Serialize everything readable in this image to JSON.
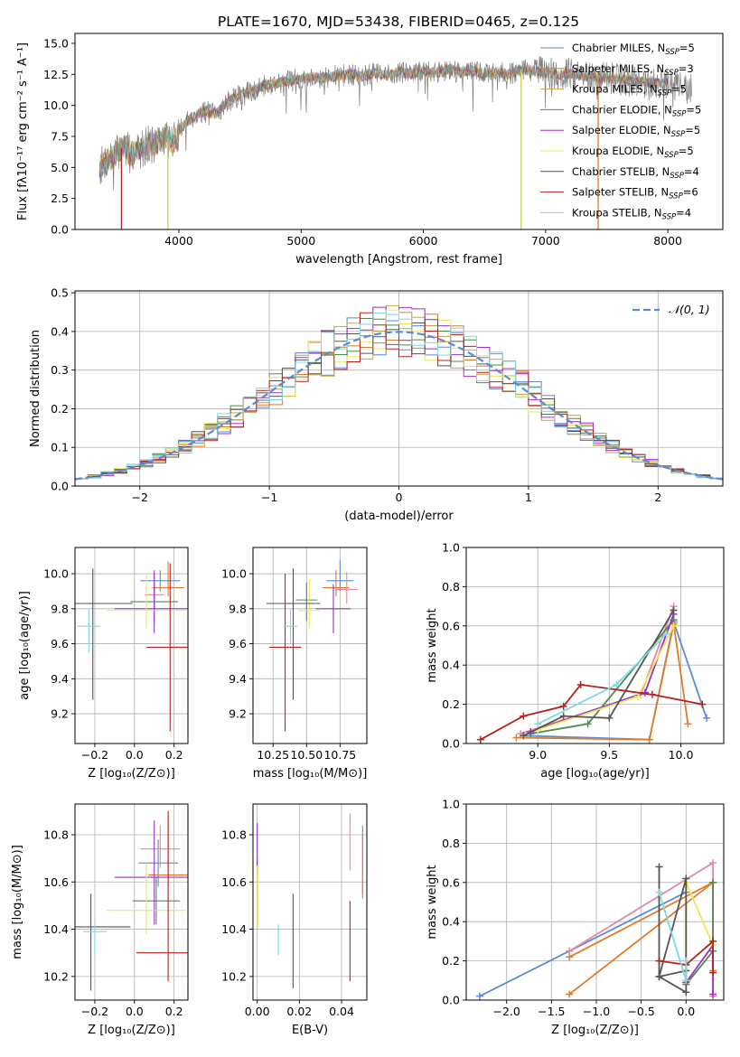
{
  "figure_title": "PLATE=1670, MJD=53438, FIBERID=0465, z=0.125",
  "chart_data": [
    {
      "id": "spectrum",
      "type": "line",
      "xlabel": "wavelength [Angstrom, rest frame]",
      "ylabel": "Flux [fλ10⁻¹⁷ erg cm⁻² s⁻¹ A⁻¹]",
      "xlim": [
        3150,
        8450
      ],
      "ylim": [
        0,
        15.8
      ],
      "xticks": [
        4000,
        5000,
        6000,
        7000,
        8000
      ],
      "xtick_labels": [
        "4000",
        "5000",
        "6000",
        "7000",
        "8000"
      ],
      "yticks": [
        0,
        2.5,
        5,
        7.5,
        10,
        12.5,
        15
      ],
      "ytick_labels": [
        "0.0",
        "2.5",
        "5.0",
        "7.5",
        "10.0",
        "12.5",
        "15.0"
      ],
      "legend_position": "upper-right",
      "observed_spectrum": {
        "x": [
          3350,
          3400,
          3450,
          3500,
          3550,
          3600,
          3650,
          3700,
          3750,
          3800,
          3850,
          3900,
          3950,
          4000,
          4100,
          4200,
          4300,
          4400,
          4500,
          4600,
          4700,
          4800,
          4900,
          5000,
          5100,
          5200,
          5300,
          5400,
          5500,
          5600,
          5700,
          5800,
          5900,
          6000,
          6100,
          6200,
          6300,
          6400,
          6500,
          6600,
          6700,
          6800,
          6900,
          7000,
          7100,
          7200,
          7300,
          7400,
          7500,
          7600,
          7700,
          7800,
          7900,
          8000,
          8100,
          8200
        ],
        "y": [
          5.0,
          5.5,
          5.8,
          6.2,
          6.8,
          6.0,
          6.3,
          6.5,
          7.0,
          6.8,
          7.2,
          7.5,
          6.9,
          8.0,
          9.0,
          9.5,
          9.3,
          10.3,
          10.8,
          11.2,
          11.6,
          11.8,
          12.0,
          12.1,
          12.3,
          12.2,
          12.4,
          12.5,
          12.3,
          12.6,
          12.4,
          12.7,
          12.5,
          12.8,
          12.6,
          12.9,
          12.7,
          12.8,
          12.6,
          12.7,
          12.5,
          12.9,
          12.8,
          12.6,
          12.5,
          12.6,
          12.4,
          12.3,
          12.2,
          12.1,
          12.0,
          11.9,
          11.8,
          11.7,
          11.5,
          11.4
        ]
      },
      "model_drops": [
        {
          "x": 3530,
          "color": "#b22222"
        },
        {
          "x": 3910,
          "color": "#c8d14f"
        },
        {
          "x": 6800,
          "color": "#c8d14f"
        },
        {
          "x": 7430,
          "color": "#e07b2a"
        }
      ],
      "series": [
        {
          "name": "Chabrier MILES, N",
          "sub": "SSP",
          "suffix": "=5",
          "color": "#5a8ad6"
        },
        {
          "name": "Salpeter MILES, N",
          "sub": "SSP",
          "suffix": "=3",
          "color": "#e07b2a"
        },
        {
          "name": "Kroupa MILES, N",
          "sub": "SSP",
          "suffix": "=5",
          "color": "#c8a23c"
        },
        {
          "name": "Chabrier ELODIE, N",
          "sub": "SSP",
          "suffix": "=5",
          "color": "#4f8a4f"
        },
        {
          "name": "Salpeter ELODIE, N",
          "sub": "SSP",
          "suffix": "=5",
          "color": "#9b30c8"
        },
        {
          "name": "Kroupa ELODIE, N",
          "sub": "SSP",
          "suffix": "=5",
          "color": "#e8e85a"
        },
        {
          "name": "Chabrier STELIB, N",
          "sub": "SSP",
          "suffix": "=4",
          "color": "#555555"
        },
        {
          "name": "Salpeter STELIB, N",
          "sub": "SSP",
          "suffix": "=6",
          "color": "#b22222"
        },
        {
          "name": "Kroupa STELIB, N",
          "sub": "SSP",
          "suffix": "=4",
          "color": "#7fd8e0"
        }
      ]
    },
    {
      "id": "residuals",
      "type": "histogram",
      "xlabel": "(data-model)/error",
      "ylabel": "Normed distribution",
      "xlim": [
        -2.5,
        2.5
      ],
      "ylim": [
        0,
        0.505
      ],
      "xticks": [
        -2,
        -1,
        0,
        1,
        2
      ],
      "xtick_labels": [
        "−2",
        "−1",
        "0",
        "1",
        "2"
      ],
      "yticks": [
        0,
        0.1,
        0.2,
        0.3,
        0.4,
        0.5
      ],
      "ytick_labels": [
        "0.0",
        "0.1",
        "0.2",
        "0.3",
        "0.4",
        "0.5"
      ],
      "grid": true,
      "legend_position": "upper-right",
      "gaussian_label": "𝒩(0, 1)",
      "gaussian_color": "#5a8ad6",
      "bin_width": 0.1
    },
    {
      "id": "age-vs-z",
      "type": "errorbar",
      "xlabel": "Z [log₁₀(Z/Z⊙)]",
      "ylabel": "age  [log₁₀(age/yr)]",
      "xlim": [
        -0.3,
        0.27
      ],
      "ylim": [
        9.03,
        10.15
      ],
      "xticks": [
        -0.2,
        0.0,
        0.2
      ],
      "xtick_labels": [
        "−0.2",
        "0.0",
        "0.2"
      ],
      "yticks": [
        9.2,
        9.4,
        9.6,
        9.8,
        10.0
      ],
      "ytick_labels": [
        "9.2",
        "9.4",
        "9.6",
        "9.8",
        "10.0"
      ],
      "points": [
        {
          "x": 0.13,
          "y": 9.96,
          "xerr": 0.1,
          "yerr": [
            0.06,
            0.06
          ],
          "color": "#5a8ad6"
        },
        {
          "x": 0.17,
          "y": 9.92,
          "xerr": 0.08,
          "yerr": [
            0.05,
            0.15
          ],
          "color": "#e07b2a"
        },
        {
          "x": 0.1,
          "y": 9.88,
          "xerr": 0.05,
          "yerr": [
            0.08,
            0.12
          ],
          "color": "#e8879c"
        },
        {
          "x": 0.1,
          "y": 9.84,
          "xerr": 0.12,
          "yerr": [
            0.12,
            0.1
          ],
          "color": "#4f8a4f"
        },
        {
          "x": 0.1,
          "y": 9.8,
          "xerr": 0.2,
          "yerr": [
            0.14,
            0.22
          ],
          "color": "#9b30c8"
        },
        {
          "x": 0.06,
          "y": 9.79,
          "xerr": 0.2,
          "yerr": [
            0.1,
            0.2
          ],
          "color": "#e8e85a"
        },
        {
          "x": -0.21,
          "y": 9.83,
          "xerr": 0.2,
          "yerr": [
            0.55,
            0.2
          ],
          "color": "#555555"
        },
        {
          "x": 0.18,
          "y": 9.58,
          "xerr": 0.12,
          "yerr": [
            0.48,
            0.48
          ],
          "color": "#b22222"
        },
        {
          "x": -0.23,
          "y": 9.7,
          "xerr": 0.06,
          "yerr": [
            0.15,
            0.1
          ],
          "color": "#7fd8e0"
        }
      ]
    },
    {
      "id": "age-vs-mass",
      "type": "errorbar",
      "xlabel": "mass [log₁₀(M/M⊙)]",
      "ylabel": "",
      "xlim": [
        10.1,
        10.95
      ],
      "ylim": [
        9.03,
        10.15
      ],
      "xticks": [
        10.25,
        10.5,
        10.75
      ],
      "xtick_labels": [
        "10.25",
        "10.50",
        "10.75"
      ],
      "yticks": [
        9.2,
        9.4,
        9.6,
        9.8,
        10.0
      ],
      "ytick_labels": [
        "9.2",
        "9.4",
        "9.6",
        "9.8",
        "10.0"
      ],
      "points": [
        {
          "x": 10.75,
          "y": 9.96,
          "xerr": 0.1,
          "yerr": [
            0.06,
            0.12
          ],
          "color": "#5a8ad6"
        },
        {
          "x": 10.72,
          "y": 9.92,
          "xerr": 0.1,
          "yerr": [
            0.05,
            0.1
          ],
          "color": "#e07b2a"
        },
        {
          "x": 10.8,
          "y": 9.91,
          "xerr": 0.08,
          "yerr": [
            0.08,
            0.1
          ],
          "color": "#e8879c"
        },
        {
          "x": 10.5,
          "y": 9.85,
          "xerr": 0.08,
          "yerr": [
            0.12,
            0.1
          ],
          "color": "#4f8a4f"
        },
        {
          "x": 10.7,
          "y": 9.8,
          "xerr": 0.13,
          "yerr": [
            0.14,
            0.14
          ],
          "color": "#9b30c8"
        },
        {
          "x": 10.52,
          "y": 9.79,
          "xerr": 0.08,
          "yerr": [
            0.1,
            0.18
          ],
          "color": "#e8e85a"
        },
        {
          "x": 10.4,
          "y": 9.83,
          "xerr": 0.2,
          "yerr": [
            0.55,
            0.2
          ],
          "color": "#555555"
        },
        {
          "x": 10.34,
          "y": 9.58,
          "xerr": 0.12,
          "yerr": [
            0.48,
            0.42
          ],
          "color": "#b22222"
        },
        {
          "x": 10.38,
          "y": 9.7,
          "xerr": 0.05,
          "yerr": [
            0.1,
            0.1
          ],
          "color": "#7fd8e0"
        }
      ]
    },
    {
      "id": "weight-vs-age",
      "type": "line",
      "xlabel": "age  [log₁₀(age/yr)]",
      "ylabel": "mass weight",
      "xlim": [
        8.5,
        10.3
      ],
      "ylim": [
        0,
        1.0
      ],
      "xticks": [
        9.0,
        9.5,
        10.0
      ],
      "xtick_labels": [
        "9.0",
        "9.5",
        "10.0"
      ],
      "yticks": [
        0,
        0.2,
        0.4,
        0.6,
        0.8,
        1.0
      ],
      "ytick_labels": [
        "0.0",
        "0.2",
        "0.4",
        "0.6",
        "0.8",
        "1.0"
      ],
      "grid": true,
      "series": [
        {
          "color": "#5a8ad6",
          "x": [
            8.9,
            9.78,
            9.95,
            10.18
          ],
          "y": [
            0.04,
            0.02,
            0.62,
            0.13
          ]
        },
        {
          "color": "#e07b2a",
          "x": [
            8.85,
            9.78,
            9.95,
            10.05
          ],
          "y": [
            0.03,
            0.02,
            0.61,
            0.1
          ]
        },
        {
          "color": "#e8879c",
          "x": [
            8.88,
            9.72,
            9.95
          ],
          "y": [
            0.05,
            0.25,
            0.7
          ]
        },
        {
          "color": "#4f8a4f",
          "x": [
            8.95,
            9.35,
            9.95
          ],
          "y": [
            0.05,
            0.1,
            0.63
          ]
        },
        {
          "color": "#9b30c8",
          "x": [
            8.95,
            9.75,
            9.95
          ],
          "y": [
            0.06,
            0.26,
            0.66
          ]
        },
        {
          "color": "#e8e85a",
          "x": [
            9.0,
            9.7,
            9.95
          ],
          "y": [
            0.07,
            0.24,
            0.6
          ]
        },
        {
          "color": "#555555",
          "x": [
            8.9,
            9.18,
            9.5,
            9.95
          ],
          "y": [
            0.04,
            0.14,
            0.13,
            0.68
          ]
        },
        {
          "color": "#b22222",
          "x": [
            8.6,
            8.9,
            9.18,
            9.3,
            9.8,
            10.15
          ],
          "y": [
            0.02,
            0.14,
            0.19,
            0.3,
            0.25,
            0.2
          ]
        },
        {
          "color": "#7fd8e0",
          "x": [
            9.0,
            9.55,
            9.9
          ],
          "y": [
            0.1,
            0.3,
            0.56
          ]
        }
      ]
    },
    {
      "id": "mass-vs-z",
      "type": "errorbar",
      "xlabel": "Z [log₁₀(Z/Z⊙)]",
      "ylabel": "mass [log₁₀(M/M⊙)]",
      "xlim": [
        -0.3,
        0.27
      ],
      "ylim": [
        10.1,
        10.93
      ],
      "xticks": [
        -0.2,
        0.0,
        0.2
      ],
      "xtick_labels": [
        "−0.2",
        "0.0",
        "0.2"
      ],
      "yticks": [
        10.2,
        10.4,
        10.6,
        10.8
      ],
      "ytick_labels": [
        "10.2",
        "10.4",
        "10.6",
        "10.8"
      ],
      "points": [
        {
          "x": 0.12,
          "y": 10.68,
          "xerr": 0.1,
          "yerr": [
            0.1,
            0.1
          ],
          "color": "#5a8ad6"
        },
        {
          "x": 0.17,
          "y": 10.63,
          "xerr": 0.1,
          "yerr": [
            0.05,
            0.25
          ],
          "color": "#e07b2a"
        },
        {
          "x": 0.13,
          "y": 10.74,
          "xerr": 0.1,
          "yerr": [
            0.08,
            0.1
          ],
          "color": "#e8879c"
        },
        {
          "x": 0.11,
          "y": 10.52,
          "xerr": 0.12,
          "yerr": [
            0.1,
            0.1
          ],
          "color": "#4f8a4f"
        },
        {
          "x": 0.1,
          "y": 10.62,
          "xerr": 0.2,
          "yerr": [
            0.2,
            0.24
          ],
          "color": "#9b30c8"
        },
        {
          "x": 0.06,
          "y": 10.48,
          "xerr": 0.2,
          "yerr": [
            0.1,
            0.2
          ],
          "color": "#e8e85a"
        },
        {
          "x": -0.22,
          "y": 10.41,
          "xerr": 0.2,
          "yerr": [
            0.27,
            0.14
          ],
          "color": "#555555"
        },
        {
          "x": 0.17,
          "y": 10.3,
          "xerr": 0.16,
          "yerr": [
            0.12,
            0.6
          ],
          "color": "#b22222"
        },
        {
          "x": -0.2,
          "y": 10.39,
          "xerr": 0.06,
          "yerr": [
            0.1,
            0.04
          ],
          "color": "#7fd8e0"
        }
      ]
    },
    {
      "id": "mass-vs-ebv",
      "type": "errorbar",
      "xlabel": "E(B-V)",
      "ylabel": "",
      "xlim": [
        -0.002,
        0.052
      ],
      "ylim": [
        10.1,
        10.93
      ],
      "xticks": [
        0,
        0.02,
        0.04
      ],
      "xtick_labels": [
        "0.00",
        "0.02",
        "0.04"
      ],
      "yticks": [
        10.2,
        10.4,
        10.6,
        10.8
      ],
      "ytick_labels": [
        "10.2",
        "10.4",
        "10.6",
        "10.8"
      ],
      "points": [
        {
          "x": 0.05,
          "y": 10.7,
          "xerr": 0,
          "yerr": [
            0.15,
            0.14
          ],
          "color": "#5a8ad6"
        },
        {
          "x": 0.05,
          "y": 10.65,
          "xerr": 0,
          "yerr": [
            0.12,
            0.15
          ],
          "color": "#e07b2a"
        },
        {
          "x": 0.044,
          "y": 10.77,
          "xerr": 0,
          "yerr": [
            0.12,
            0.12
          ],
          "color": "#e8879c"
        },
        {
          "x": 0.0,
          "y": 10.55,
          "xerr": 0,
          "yerr": [
            0.15,
            0.15
          ],
          "color": "#4f8a4f"
        },
        {
          "x": 0.0,
          "y": 10.75,
          "xerr": 0,
          "yerr": [
            0.12,
            0.1
          ],
          "color": "#9b30c8"
        },
        {
          "x": 0.0,
          "y": 10.5,
          "xerr": 0,
          "yerr": [
            0.1,
            0.17
          ],
          "color": "#e8e85a"
        },
        {
          "x": 0.017,
          "y": 10.35,
          "xerr": 0,
          "yerr": [
            0.2,
            0.2
          ],
          "color": "#555555"
        },
        {
          "x": 0.044,
          "y": 10.35,
          "xerr": 0,
          "yerr": [
            0.17,
            0.17
          ],
          "color": "#b22222"
        },
        {
          "x": 0.01,
          "y": 10.35,
          "xerr": 0,
          "yerr": [
            0.06,
            0.07
          ],
          "color": "#7fd8e0"
        }
      ]
    },
    {
      "id": "weight-vs-z",
      "type": "line",
      "xlabel": "Z [log₁₀(Z/Z⊙)]",
      "ylabel": "mass weight",
      "xlim": [
        -2.45,
        0.42
      ],
      "ylim": [
        0,
        1.0
      ],
      "xticks": [
        -2.0,
        -1.5,
        -1.0,
        -0.5,
        0.0
      ],
      "xtick_labels": [
        "−2.0",
        "−1.5",
        "−1.0",
        "−0.5",
        "0.0"
      ],
      "yticks": [
        0,
        0.2,
        0.4,
        0.6,
        0.8,
        1.0
      ],
      "ytick_labels": [
        "0.0",
        "0.2",
        "0.4",
        "0.6",
        "0.8",
        "1.0"
      ],
      "grid": true,
      "series": [
        {
          "color": "#5a8ad6",
          "x": [
            -2.3,
            0.0
          ],
          "y": [
            0.02,
            0.55
          ]
        },
        {
          "color": "#e07b2a",
          "x": [
            -1.3,
            0.3,
            -1.3,
            0.3,
            0.3
          ],
          "y": [
            0.03,
            0.6,
            0.22,
            0.6,
            0.15
          ]
        },
        {
          "color": "#e8879c",
          "x": [
            -1.3,
            0.3,
            0.3
          ],
          "y": [
            0.25,
            0.7,
            0.02
          ]
        },
        {
          "color": "#4f8a4f",
          "x": [
            0.0,
            0.3,
            0.3
          ],
          "y": [
            0.08,
            0.25,
            0.6
          ]
        },
        {
          "color": "#9b30c8",
          "x": [
            0.0,
            0.3,
            0.3
          ],
          "y": [
            0.09,
            0.28,
            0.03
          ]
        },
        {
          "color": "#e8e85a",
          "x": [
            0.0,
            0.0,
            0.3
          ],
          "y": [
            0.1,
            0.6,
            0.28
          ]
        },
        {
          "color": "#555555",
          "x": [
            -0.3,
            -0.3,
            0.0,
            0.0,
            -0.3,
            0.0
          ],
          "y": [
            0.68,
            0.12,
            0.62,
            0.04,
            0.12,
            0.15
          ]
        },
        {
          "color": "#b22222",
          "x": [
            -0.3,
            0.0,
            0.3,
            0.3
          ],
          "y": [
            0.2,
            0.18,
            0.3,
            0.14
          ]
        },
        {
          "color": "#7fd8e0",
          "x": [
            -0.3,
            0.0,
            0.0
          ],
          "y": [
            0.55,
            0.1,
            0.2
          ]
        }
      ]
    }
  ]
}
